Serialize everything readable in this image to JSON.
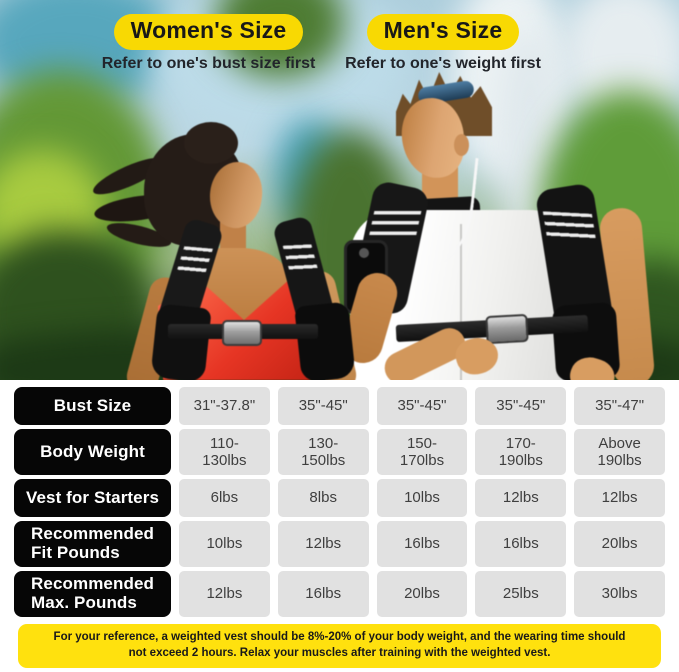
{
  "header": {
    "women": {
      "badge": "Women's Size",
      "subtitle": "Refer to one's bust size first"
    },
    "men": {
      "badge": "Men's Size",
      "subtitle": "Refer to one's weight first"
    }
  },
  "size_table": {
    "rows": [
      {
        "label": "Bust Size",
        "values": [
          "31\"-37.8\"",
          "35\"-45\"",
          "35\"-45\"",
          "35\"-45\"",
          "35\"-47\""
        ]
      },
      {
        "label": "Body Weight",
        "values": [
          "110-\n130lbs",
          "130-\n150lbs",
          "150-\n170lbs",
          "170-\n190lbs",
          "Above\n190lbs"
        ]
      },
      {
        "label": "Vest for Starters",
        "values": [
          "6lbs",
          "8lbs",
          "10lbs",
          "12lbs",
          "12lbs"
        ]
      },
      {
        "label": "Recommended\nFit Pounds",
        "values": [
          "10lbs",
          "12lbs",
          "16lbs",
          "16lbs",
          "20lbs"
        ]
      },
      {
        "label": "Recommended\nMax. Pounds",
        "values": [
          "12lbs",
          "16lbs",
          "20lbs",
          "25lbs",
          "30lbs"
        ]
      }
    ]
  },
  "note": {
    "text": "For your reference, a weighted vest should be 8%-20% of your body weight, and the wearing time should not exceed 2 hours. Relax your muscles after training with the weighted vest."
  },
  "chart_data": {
    "type": "table",
    "title": "Weighted vest size guide",
    "row_headers": [
      "Bust Size",
      "Body Weight",
      "Vest for Starters",
      "Recommended Fit Pounds",
      "Recommended Max. Pounds"
    ],
    "rows": [
      [
        "31\"-37.8\"",
        "35\"-45\"",
        "35\"-45\"",
        "35\"-45\"",
        "35\"-47\""
      ],
      [
        "110-130lbs",
        "130-150lbs",
        "150-170lbs",
        "170-190lbs",
        "Above 190lbs"
      ],
      [
        "6lbs",
        "8lbs",
        "10lbs",
        "12lbs",
        "12lbs"
      ],
      [
        "10lbs",
        "12lbs",
        "16lbs",
        "16lbs",
        "20lbs"
      ],
      [
        "12lbs",
        "16lbs",
        "20lbs",
        "25lbs",
        "30lbs"
      ]
    ]
  },
  "colors": {
    "accent_yellow": "#F8D903",
    "note_yellow": "#FFE10E",
    "label_black": "#060606",
    "cell_gray": "#E1E1E1",
    "woman_top_red": "#E63524",
    "vest_black": "#141414"
  }
}
